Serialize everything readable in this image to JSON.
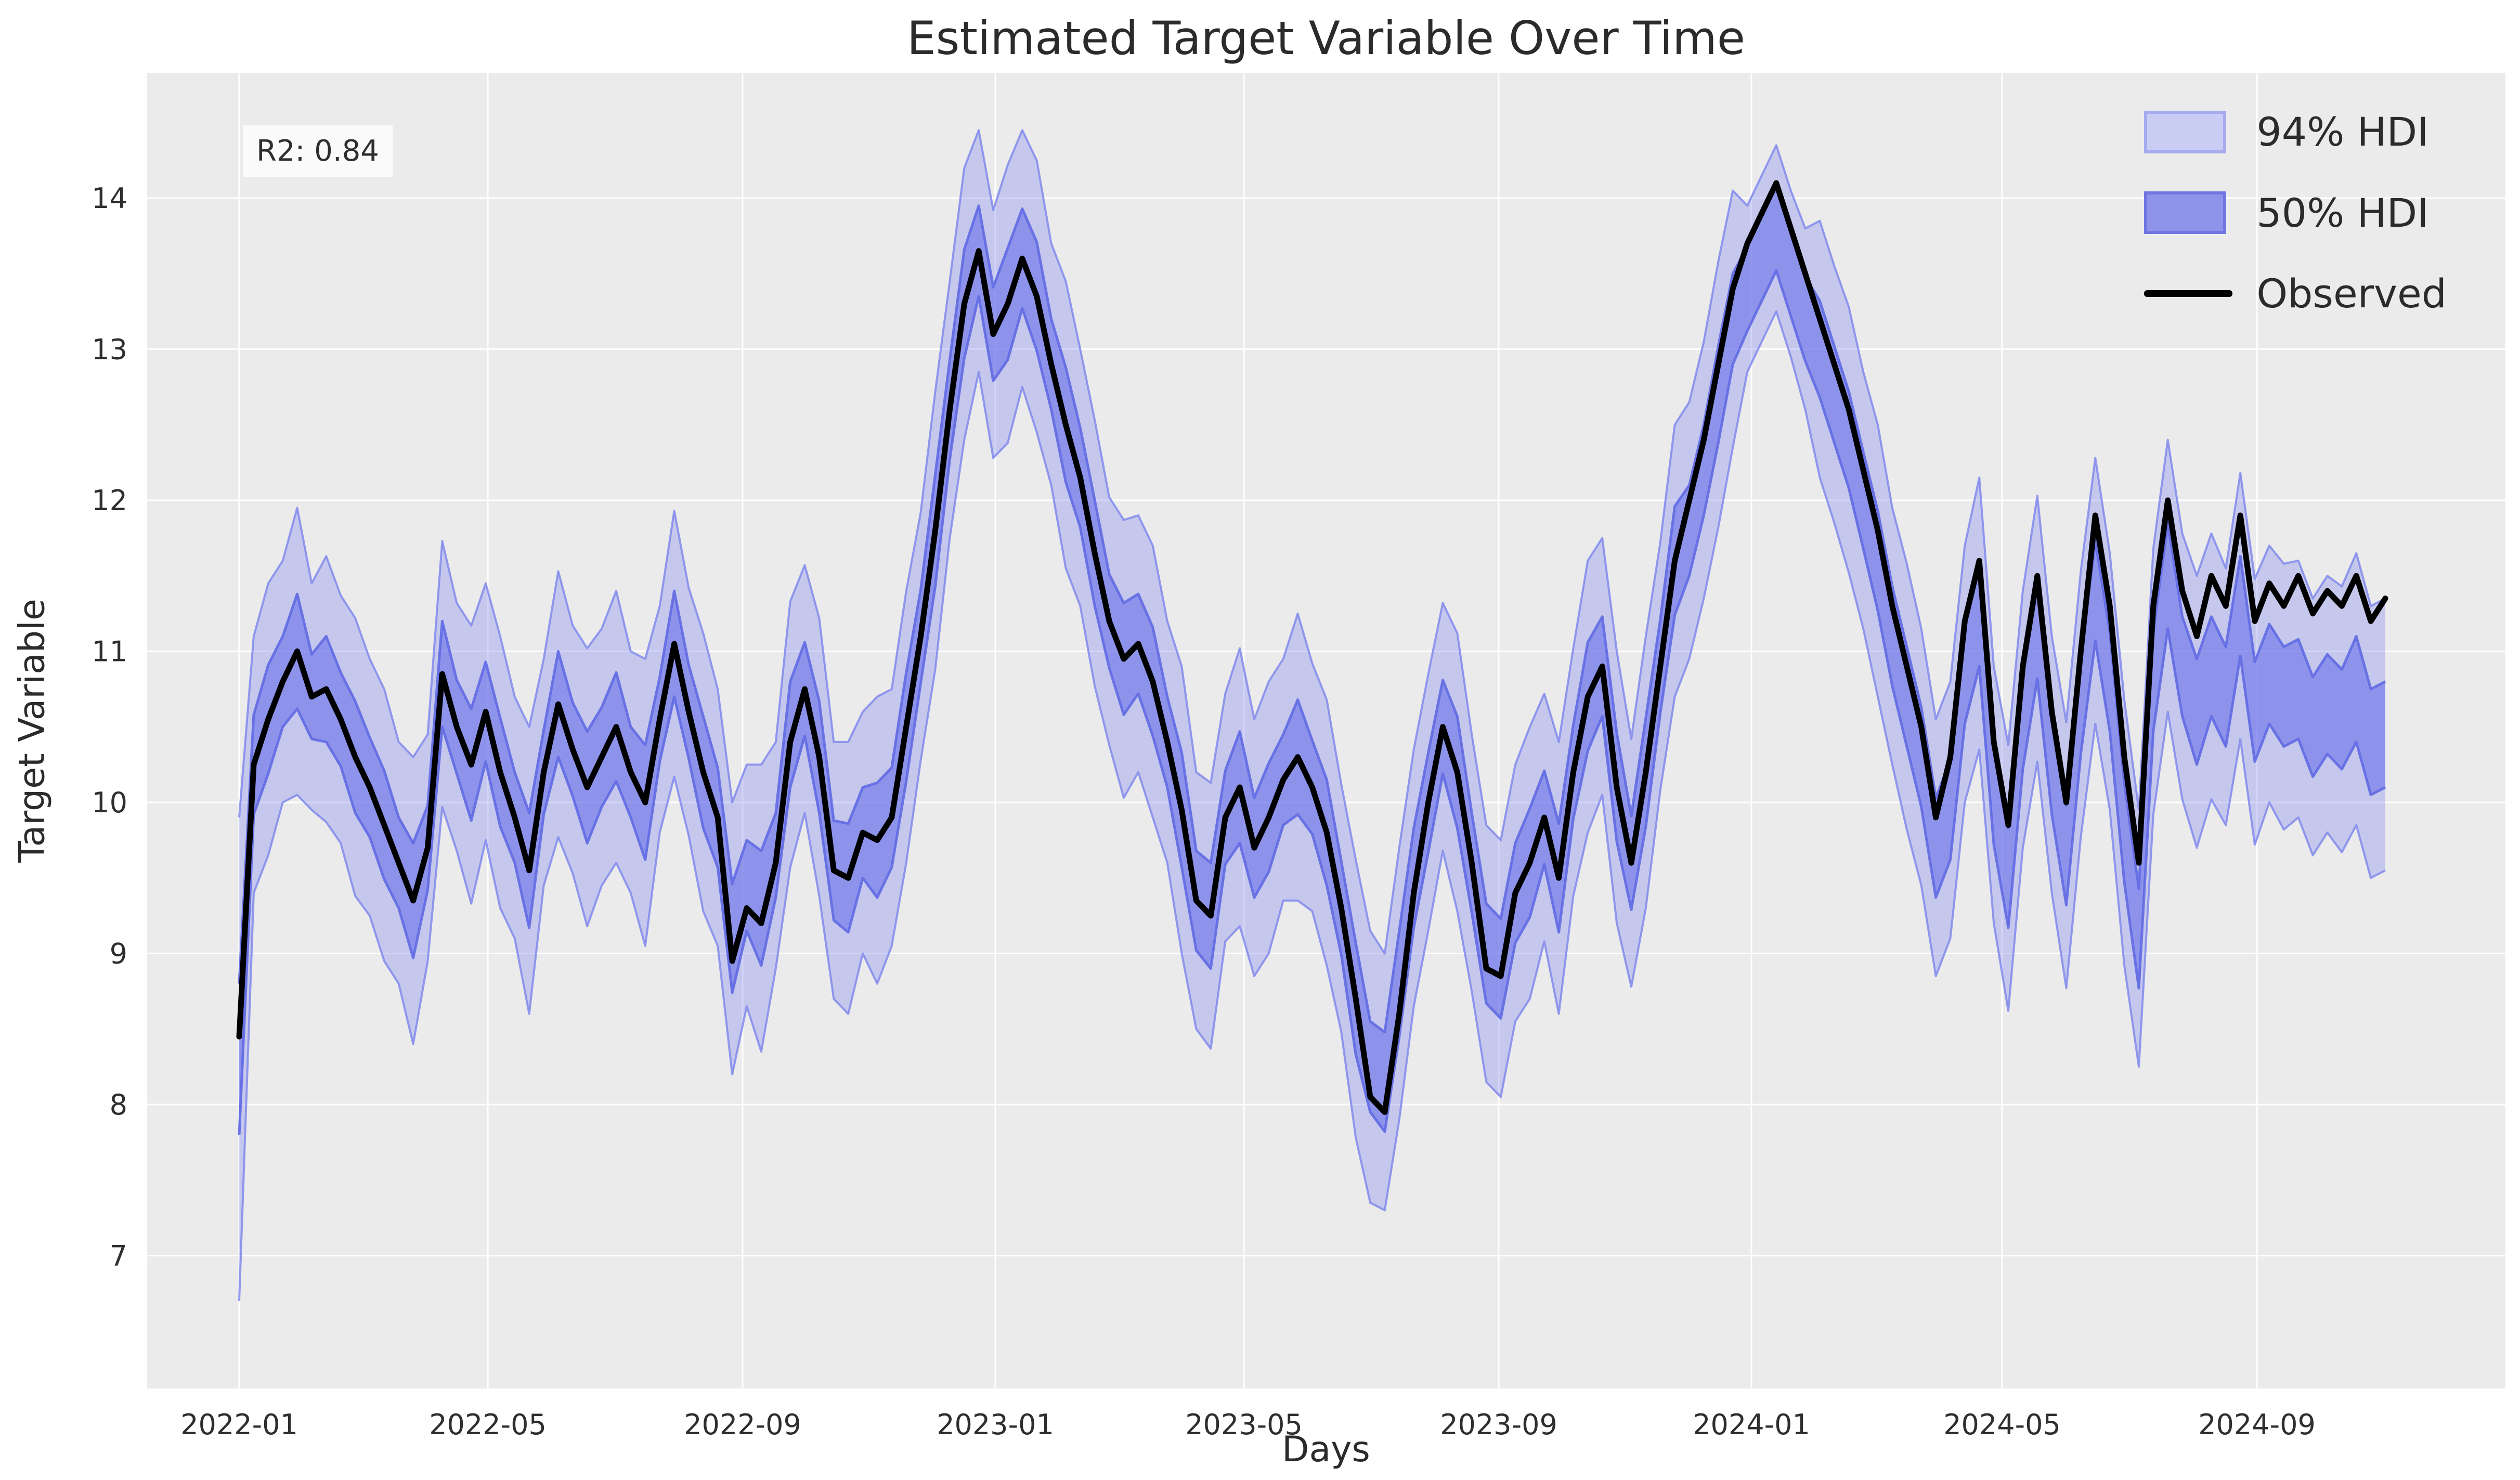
{
  "title": "Estimated Target Variable Over Time",
  "annotation": {
    "r2_label": "R2: 0.84"
  },
  "legend": {
    "position": "upper right",
    "items": [
      {
        "label": "94% HDI",
        "type": "band",
        "fill": "#c9cdf4",
        "border": "#a6abf0"
      },
      {
        "label": "50% HDI",
        "type": "band",
        "fill": "#8d93e9",
        "border": "#7077e2"
      },
      {
        "label": "Observed",
        "type": "line",
        "color": "#000000"
      }
    ]
  },
  "axes": {
    "xlabel": "Days",
    "ylabel": "Target Variable",
    "x_ticks": [
      {
        "label": "2022-01",
        "day": 0
      },
      {
        "label": "2022-05",
        "day": 120
      },
      {
        "label": "2022-09",
        "day": 243
      },
      {
        "label": "2023-01",
        "day": 365
      },
      {
        "label": "2023-05",
        "day": 485
      },
      {
        "label": "2023-09",
        "day": 608
      },
      {
        "label": "2024-01",
        "day": 730
      },
      {
        "label": "2024-05",
        "day": 851
      },
      {
        "label": "2024-09",
        "day": 974
      }
    ],
    "y_ticks": [
      7,
      8,
      9,
      10,
      11,
      12,
      13,
      14
    ]
  },
  "colors": {
    "page_bg": "#ffffff",
    "plot_bg": "#ebebeb",
    "grid": "#ffffff",
    "band94_fill": "rgba(124,132,236,0.34)",
    "band94_edge": "rgba(124,132,236,0.8)",
    "band50_fill": "rgba(106,115,232,0.62)",
    "band50_edge": "rgba(97,106,227,0.9)",
    "observed": "#000000",
    "text": "#2e2e2e"
  },
  "chart_data": {
    "type": "line",
    "title": "Estimated Target Variable Over Time",
    "xlabel": "Days",
    "ylabel": "Target Variable",
    "annotation": "R2: 0.84",
    "legend_position": "upper right",
    "grid": "white gridlines on light gray background",
    "y_ticks": [
      7,
      8,
      9,
      10,
      11,
      12,
      13,
      14
    ],
    "ylim": [
      6.1,
      14.85
    ],
    "xlim_days": [
      -44,
      1095
    ],
    "x_tick_labels": [
      "2022-01",
      "2022-05",
      "2022-09",
      "2023-01",
      "2023-05",
      "2023-09",
      "2024-01",
      "2024-05",
      "2024-09"
    ],
    "x_unit": "days since 2022-01-01, weekly samples (estimated from pixels)",
    "columns": [
      "day",
      "observed",
      "hdi94_lower",
      "hdi50_lower",
      "hdi50_upper",
      "hdi94_upper"
    ],
    "points": [
      [
        0,
        8.45,
        6.7,
        7.8,
        8.8,
        9.9
      ],
      [
        7,
        10.25,
        9.4,
        9.92,
        10.58,
        11.1
      ],
      [
        14,
        10.55,
        9.65,
        10.19,
        10.91,
        11.45
      ],
      [
        21,
        10.8,
        10.0,
        10.5,
        11.1,
        11.6
      ],
      [
        28,
        11.0,
        10.05,
        10.62,
        11.38,
        11.95
      ],
      [
        35,
        10.7,
        9.95,
        10.42,
        10.98,
        11.45
      ],
      [
        42,
        10.75,
        9.87,
        10.4,
        11.1,
        11.63
      ],
      [
        49,
        10.55,
        9.73,
        10.24,
        10.86,
        11.37
      ],
      [
        56,
        10.3,
        9.38,
        9.93,
        10.67,
        11.22
      ],
      [
        63,
        10.1,
        9.25,
        9.77,
        10.43,
        10.95
      ],
      [
        70,
        9.85,
        8.95,
        9.49,
        10.21,
        10.75
      ],
      [
        77,
        9.6,
        8.8,
        9.3,
        9.9,
        10.4
      ],
      [
        84,
        9.35,
        8.4,
        8.97,
        9.73,
        10.3
      ],
      [
        91,
        9.7,
        8.95,
        9.42,
        9.98,
        10.45
      ],
      [
        98,
        10.85,
        9.97,
        10.5,
        11.2,
        11.73
      ],
      [
        105,
        10.5,
        9.68,
        10.19,
        10.81,
        11.32
      ],
      [
        112,
        10.25,
        9.33,
        9.88,
        10.62,
        11.17
      ],
      [
        119,
        10.6,
        9.75,
        10.27,
        10.93,
        11.45
      ],
      [
        126,
        10.2,
        9.3,
        9.84,
        10.56,
        11.1
      ],
      [
        133,
        9.9,
        9.1,
        9.6,
        10.2,
        10.7
      ],
      [
        140,
        9.55,
        8.6,
        9.17,
        9.93,
        10.5
      ],
      [
        147,
        10.2,
        9.45,
        9.92,
        10.48,
        10.95
      ],
      [
        154,
        10.65,
        9.77,
        10.3,
        11.0,
        11.53
      ],
      [
        161,
        10.35,
        9.53,
        10.04,
        10.66,
        11.17
      ],
      [
        168,
        10.1,
        9.18,
        9.73,
        10.47,
        11.02
      ],
      [
        175,
        10.3,
        9.45,
        9.97,
        10.63,
        11.15
      ],
      [
        182,
        10.5,
        9.6,
        10.14,
        10.86,
        11.4
      ],
      [
        189,
        10.2,
        9.4,
        9.9,
        10.5,
        11.0
      ],
      [
        196,
        10.0,
        9.05,
        9.62,
        10.38,
        10.95
      ],
      [
        203,
        10.55,
        9.8,
        10.27,
        10.83,
        11.3
      ],
      [
        210,
        11.05,
        10.17,
        10.7,
        11.4,
        11.93
      ],
      [
        217,
        10.6,
        9.78,
        10.29,
        10.91,
        11.42
      ],
      [
        224,
        10.2,
        9.28,
        9.83,
        10.57,
        11.12
      ],
      [
        231,
        9.9,
        9.05,
        9.57,
        10.23,
        10.75
      ],
      [
        238,
        8.95,
        8.2,
        8.74,
        9.46,
        10.0
      ],
      [
        245,
        9.3,
        8.65,
        9.15,
        9.75,
        10.25
      ],
      [
        252,
        9.2,
        8.35,
        8.92,
        9.68,
        10.25
      ],
      [
        259,
        9.6,
        8.9,
        9.37,
        9.93,
        10.4
      ],
      [
        266,
        10.4,
        9.57,
        10.1,
        10.8,
        11.33
      ],
      [
        273,
        10.75,
        9.93,
        10.44,
        11.06,
        11.57
      ],
      [
        280,
        10.3,
        9.38,
        9.93,
        10.67,
        11.22
      ],
      [
        287,
        9.55,
        8.7,
        9.22,
        9.88,
        10.4
      ],
      [
        294,
        9.5,
        8.6,
        9.14,
        9.86,
        10.4
      ],
      [
        301,
        9.8,
        9.0,
        9.5,
        10.1,
        10.6
      ],
      [
        308,
        9.75,
        8.8,
        9.37,
        10.13,
        10.7
      ],
      [
        315,
        9.9,
        9.05,
        9.57,
        10.23,
        10.75
      ],
      [
        322,
        10.5,
        9.6,
        10.14,
        10.86,
        11.4
      ],
      [
        329,
        11.1,
        10.28,
        10.79,
        11.41,
        11.92
      ],
      [
        336,
        11.8,
        10.88,
        11.43,
        12.17,
        12.72
      ],
      [
        343,
        12.6,
        11.75,
        12.27,
        12.93,
        13.45
      ],
      [
        350,
        13.3,
        12.4,
        12.94,
        13.66,
        14.2
      ],
      [
        357,
        13.65,
        12.85,
        13.35,
        13.95,
        14.45
      ],
      [
        364,
        13.1,
        12.28,
        12.79,
        13.41,
        13.92
      ],
      [
        371,
        13.3,
        12.38,
        12.93,
        13.67,
        14.22
      ],
      [
        378,
        13.6,
        12.75,
        13.27,
        13.93,
        14.45
      ],
      [
        385,
        13.35,
        12.45,
        12.99,
        13.71,
        14.25
      ],
      [
        392,
        12.9,
        12.1,
        12.6,
        13.2,
        13.7
      ],
      [
        399,
        12.5,
        11.55,
        12.12,
        12.88,
        13.45
      ],
      [
        406,
        12.15,
        11.3,
        11.82,
        12.48,
        13.0
      ],
      [
        413,
        11.65,
        10.77,
        11.3,
        12.0,
        12.53
      ],
      [
        420,
        11.2,
        10.38,
        10.89,
        11.51,
        12.02
      ],
      [
        427,
        10.95,
        10.03,
        10.58,
        11.32,
        11.87
      ],
      [
        434,
        11.05,
        10.2,
        10.72,
        11.38,
        11.9
      ],
      [
        441,
        10.8,
        9.9,
        10.44,
        11.16,
        11.7
      ],
      [
        448,
        10.4,
        9.6,
        10.1,
        10.7,
        11.2
      ],
      [
        455,
        9.95,
        9.0,
        9.57,
        10.33,
        10.9
      ],
      [
        462,
        9.35,
        8.5,
        9.02,
        9.68,
        10.2
      ],
      [
        469,
        9.25,
        8.37,
        8.9,
        9.6,
        10.13
      ],
      [
        476,
        9.9,
        9.08,
        9.59,
        10.21,
        10.72
      ],
      [
        483,
        10.1,
        9.18,
        9.73,
        10.47,
        11.02
      ],
      [
        490,
        9.7,
        8.85,
        9.37,
        10.03,
        10.55
      ],
      [
        497,
        9.9,
        9.0,
        9.54,
        10.26,
        10.8
      ],
      [
        504,
        10.15,
        9.35,
        9.85,
        10.45,
        10.95
      ],
      [
        511,
        10.3,
        9.35,
        9.92,
        10.68,
        11.25
      ],
      [
        518,
        10.1,
        9.28,
        9.79,
        10.41,
        10.92
      ],
      [
        525,
        9.8,
        8.92,
        9.45,
        10.15,
        10.68
      ],
      [
        532,
        9.3,
        8.48,
        8.99,
        9.61,
        10.12
      ],
      [
        539,
        8.7,
        7.78,
        8.33,
        9.07,
        9.62
      ],
      [
        546,
        8.05,
        7.35,
        7.95,
        8.55,
        9.15
      ],
      [
        553,
        7.95,
        7.3,
        7.82,
        8.48,
        9.0
      ],
      [
        560,
        8.6,
        7.9,
        8.45,
        9.15,
        9.7
      ],
      [
        567,
        9.4,
        8.65,
        9.17,
        9.83,
        10.35
      ],
      [
        574,
        10.0,
        9.15,
        9.67,
        10.33,
        10.85
      ],
      [
        581,
        10.5,
        9.68,
        10.19,
        10.81,
        11.32
      ],
      [
        588,
        10.2,
        9.28,
        9.83,
        10.57,
        11.12
      ],
      [
        595,
        9.6,
        8.75,
        9.27,
        9.93,
        10.45
      ],
      [
        602,
        8.9,
        8.15,
        8.67,
        9.33,
        9.85
      ],
      [
        609,
        8.85,
        8.05,
        8.57,
        9.23,
        9.75
      ],
      [
        616,
        9.4,
        8.55,
        9.07,
        9.73,
        10.25
      ],
      [
        623,
        9.6,
        8.7,
        9.24,
        9.96,
        10.5
      ],
      [
        630,
        9.9,
        9.08,
        9.59,
        10.21,
        10.72
      ],
      [
        637,
        9.5,
        8.6,
        9.14,
        9.86,
        10.4
      ],
      [
        644,
        10.2,
        9.38,
        9.89,
        10.51,
        11.02
      ],
      [
        651,
        10.7,
        9.8,
        10.34,
        11.06,
        11.6
      ],
      [
        658,
        10.9,
        10.05,
        10.57,
        11.23,
        11.75
      ],
      [
        665,
        10.1,
        9.2,
        9.74,
        10.46,
        11.0
      ],
      [
        672,
        9.6,
        8.78,
        9.29,
        9.91,
        10.42
      ],
      [
        679,
        10.2,
        9.3,
        9.84,
        10.56,
        11.1
      ],
      [
        686,
        10.9,
        10.08,
        10.59,
        11.21,
        11.72
      ],
      [
        693,
        11.6,
        10.7,
        11.24,
        11.96,
        12.5
      ],
      [
        700,
        12.0,
        10.95,
        11.5,
        12.1,
        12.65
      ],
      [
        707,
        12.4,
        11.35,
        11.9,
        12.5,
        13.05
      ],
      [
        714,
        12.9,
        11.82,
        12.38,
        13.02,
        13.58
      ],
      [
        721,
        13.4,
        12.35,
        12.9,
        13.5,
        14.05
      ],
      [
        728,
        13.7,
        12.85,
        13.12,
        13.68,
        13.95
      ],
      [
        735,
        13.9,
        13.05,
        13.32,
        13.88,
        14.15
      ],
      [
        742,
        14.1,
        13.25,
        13.52,
        14.08,
        14.35
      ],
      [
        749,
        13.8,
        12.95,
        13.22,
        13.78,
        14.05
      ],
      [
        756,
        13.5,
        12.6,
        12.92,
        13.48,
        13.8
      ],
      [
        763,
        13.2,
        12.15,
        12.68,
        13.32,
        13.85
      ],
      [
        770,
        12.9,
        11.85,
        12.38,
        13.02,
        13.55
      ],
      [
        777,
        12.6,
        11.52,
        12.08,
        12.72,
        13.28
      ],
      [
        784,
        12.2,
        11.15,
        11.68,
        12.32,
        12.85
      ],
      [
        791,
        11.8,
        10.7,
        11.27,
        11.93,
        12.5
      ],
      [
        798,
        11.3,
        10.25,
        10.77,
        11.43,
        11.95
      ],
      [
        805,
        10.9,
        9.82,
        10.37,
        11.03,
        11.58
      ],
      [
        812,
        10.5,
        9.45,
        9.97,
        10.63,
        11.15
      ],
      [
        819,
        9.9,
        8.85,
        9.37,
        10.03,
        10.55
      ],
      [
        826,
        10.3,
        9.1,
        9.62,
        10.28,
        10.8
      ],
      [
        833,
        11.2,
        10.0,
        10.52,
        11.18,
        11.7
      ],
      [
        840,
        11.6,
        10.35,
        10.9,
        11.6,
        12.15
      ],
      [
        847,
        10.4,
        9.2,
        9.72,
        10.38,
        10.9
      ],
      [
        854,
        9.85,
        8.62,
        9.17,
        9.83,
        10.38
      ],
      [
        861,
        10.9,
        9.7,
        10.22,
        10.88,
        11.4
      ],
      [
        868,
        11.5,
        10.27,
        10.82,
        11.48,
        12.03
      ],
      [
        875,
        10.6,
        9.4,
        9.92,
        10.58,
        11.1
      ],
      [
        882,
        10.0,
        8.77,
        9.32,
        9.98,
        10.53
      ],
      [
        889,
        11.0,
        9.77,
        10.32,
        10.98,
        11.53
      ],
      [
        896,
        11.9,
        10.52,
        11.07,
        11.73,
        12.28
      ],
      [
        903,
        11.3,
        9.95,
        10.47,
        11.13,
        11.65
      ],
      [
        910,
        10.3,
        8.92,
        9.47,
        10.13,
        10.68
      ],
      [
        917,
        9.6,
        8.25,
        8.77,
        9.43,
        9.95
      ],
      [
        924,
        11.3,
        9.92,
        10.47,
        11.13,
        11.68
      ],
      [
        931,
        12.0,
        10.6,
        11.15,
        11.85,
        12.4
      ],
      [
        938,
        11.4,
        10.02,
        10.57,
        11.23,
        11.78
      ],
      [
        945,
        11.1,
        9.7,
        10.25,
        10.95,
        11.5
      ],
      [
        952,
        11.5,
        10.02,
        10.57,
        11.23,
        11.78
      ],
      [
        959,
        11.3,
        9.85,
        10.37,
        11.03,
        11.55
      ],
      [
        966,
        11.9,
        10.42,
        10.97,
        11.63,
        12.18
      ],
      [
        973,
        11.2,
        9.72,
        10.27,
        10.93,
        11.48
      ],
      [
        980,
        11.45,
        10.0,
        10.52,
        11.18,
        11.7
      ],
      [
        987,
        11.3,
        9.82,
        10.37,
        11.03,
        11.58
      ],
      [
        994,
        11.5,
        9.9,
        10.42,
        11.08,
        11.6
      ],
      [
        1001,
        11.25,
        9.65,
        10.17,
        10.83,
        11.35
      ],
      [
        1008,
        11.4,
        9.8,
        10.32,
        10.98,
        11.5
      ],
      [
        1015,
        11.3,
        9.67,
        10.22,
        10.88,
        11.43
      ],
      [
        1022,
        11.5,
        9.85,
        10.4,
        11.1,
        11.65
      ],
      [
        1029,
        11.2,
        9.5,
        10.05,
        10.75,
        11.3
      ],
      [
        1036,
        11.35,
        9.55,
        10.1,
        10.8,
        11.35
      ]
    ]
  }
}
